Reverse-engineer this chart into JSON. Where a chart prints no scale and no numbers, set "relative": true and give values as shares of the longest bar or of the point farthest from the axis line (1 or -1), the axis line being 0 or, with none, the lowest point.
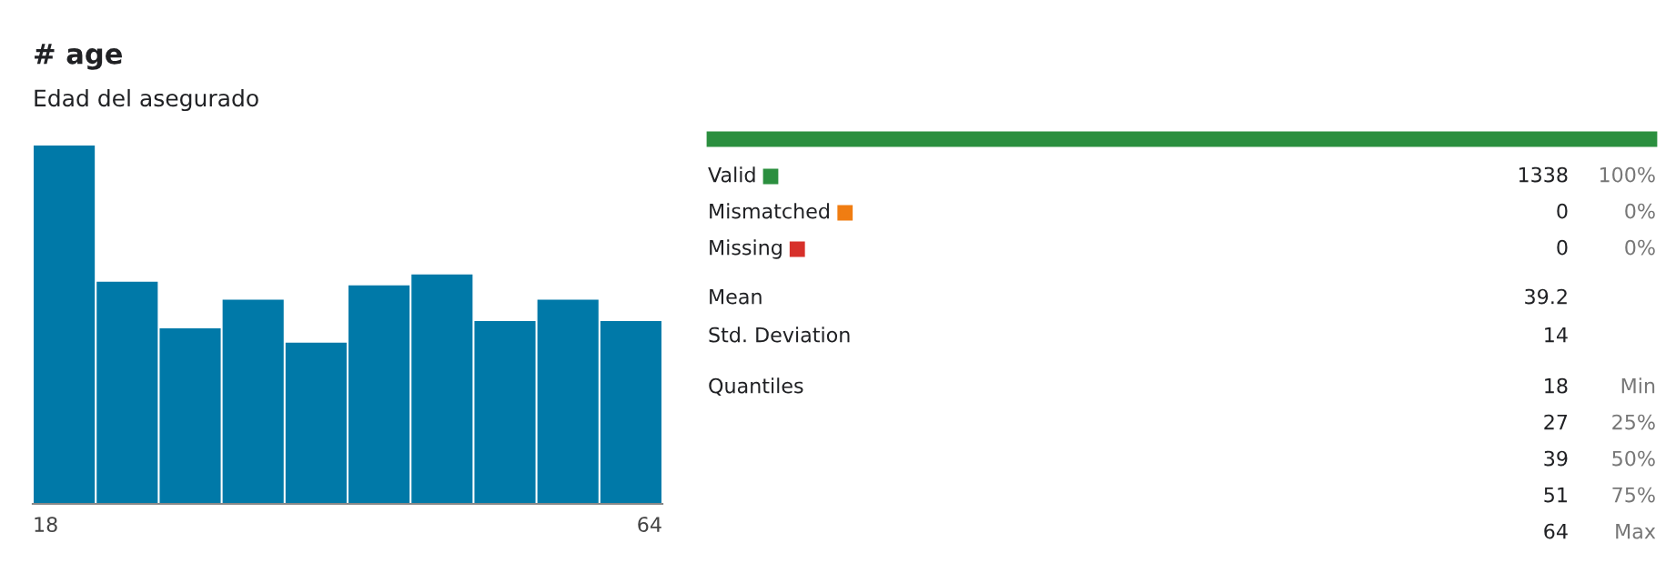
{
  "chart_data": [
    {
      "type": "bar",
      "title": "# age",
      "subtitle": "Edad del asegurado",
      "relative": true,
      "categories": [
        null,
        null,
        null,
        null,
        null,
        null,
        null,
        null,
        null,
        null
      ],
      "values": [
        1,
        0.62,
        0.49,
        0.57,
        0.45,
        0.61,
        0.64,
        0.51,
        0.57,
        0.51
      ],
      "color": "#0079a8",
      "annotations": [
        "18",
        "64"
      ]
    },
    {
      "type": "other",
      "colors": [
        "#2b8f3f",
        "#f07d12",
        "#d7302a"
      ],
      "annotations": [
        "Valid",
        "1338",
        "100%",
        "Mismatched",
        "0",
        "0%",
        "Missing",
        "0",
        "0%",
        "Mean",
        "39.2",
        "Std. Deviation",
        "14",
        "Quantiles",
        "18",
        "Min",
        "27",
        "25%",
        "39",
        "50%",
        "51",
        "75%",
        "64",
        "Max"
      ]
    }
  ]
}
